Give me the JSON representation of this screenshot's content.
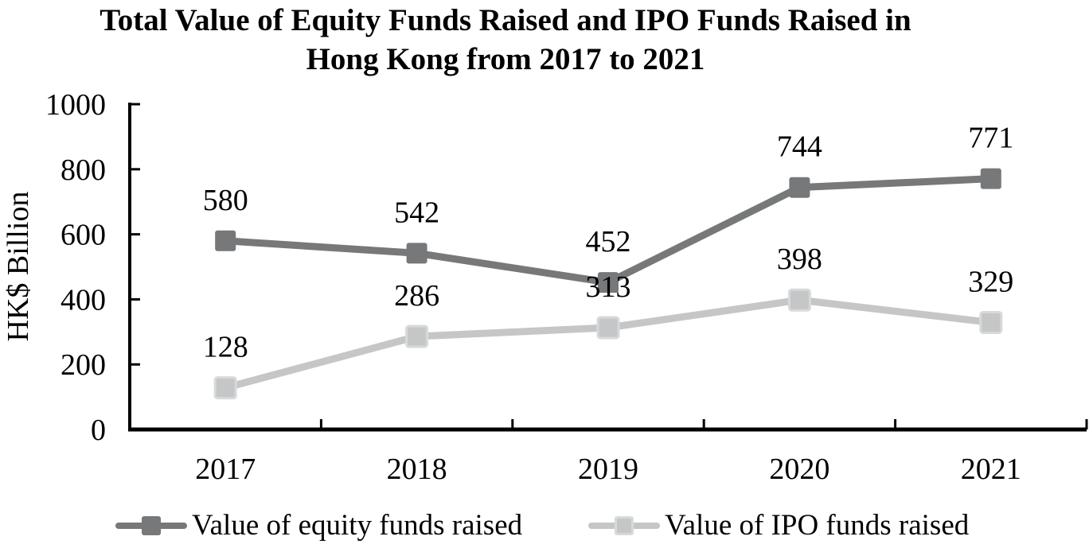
{
  "title": {
    "line1": "Total Value of Equity Funds Raised and IPO Funds Raised in",
    "line2": "Hong Kong from 2017 to 2021"
  },
  "chart_data": {
    "type": "line",
    "title": "Total Value of Equity Funds Raised and IPO Funds Raised in Hong Kong from 2017 to 2021",
    "categories": [
      "2017",
      "2018",
      "2019",
      "2020",
      "2021"
    ],
    "series": [
      {
        "name": "Value of equity funds raised",
        "values": [
          580,
          542,
          452,
          744,
          771
        ],
        "color": "#76787a",
        "marker": "square"
      },
      {
        "name": "Value of IPO funds raised",
        "values": [
          128,
          286,
          313,
          398,
          329
        ],
        "color": "#c4c6c8",
        "marker": "square",
        "marker_border": "#d8dada"
      }
    ],
    "xlabel": "",
    "ylabel": "HK$ Billion",
    "ylim": [
      0,
      1000
    ],
    "yticks": [
      0,
      200,
      400,
      600,
      800,
      1000
    ],
    "grid": false,
    "data_labels": true,
    "legend_position": "bottom",
    "axis_color": "#000000",
    "text_color": "#000000"
  }
}
